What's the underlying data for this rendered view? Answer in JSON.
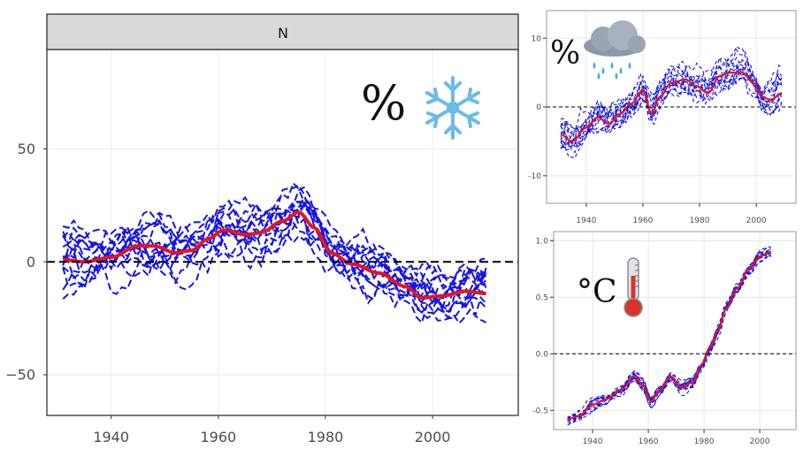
{
  "chart_data": [
    {
      "type": "line",
      "strip_label": "N",
      "unit_symbol": "%",
      "icon": "snowflake-icon",
      "x_ticks": [
        1940,
        1960,
        1980,
        2000
      ],
      "x_tick_labels": [
        "1940",
        "1960",
        "1980",
        "2000"
      ],
      "y_ticks": [
        -50,
        0,
        50
      ],
      "y_tick_labels": [
        "−50",
        "0",
        "50"
      ],
      "xlim": [
        1928,
        2016
      ],
      "ylim": [
        -68,
        94
      ],
      "reference_line": 0,
      "mean_series": {
        "x": [
          1931,
          1935,
          1940,
          1945,
          1948,
          1952,
          1955,
          1958,
          1961,
          1965,
          1968,
          1972,
          1975,
          1978,
          1981,
          1985,
          1990,
          1995,
          1998,
          2002,
          2006,
          2010
        ],
        "y": [
          1,
          0,
          2,
          7,
          7,
          4,
          5,
          10,
          14,
          12,
          13,
          18,
          22,
          15,
          4,
          -1,
          -5,
          -11,
          -16,
          -15,
          -13,
          -14
        ]
      },
      "ensemble": {
        "members": 14,
        "x_start": 1931,
        "x_end": 2010,
        "spread": 13
      },
      "colors": {
        "mean": "#e8141c",
        "ensemble": "#1414e6",
        "reference": "#000000",
        "strip": "#d9d9d9"
      }
    },
    {
      "type": "line",
      "unit_symbol": "%",
      "icon": "rain-cloud-icon",
      "x_ticks": [
        1940,
        1960,
        1980,
        2000
      ],
      "x_tick_labels": [
        "1940",
        "1960",
        "1980",
        "2000"
      ],
      "y_ticks": [
        -10,
        0,
        10
      ],
      "y_tick_labels": [
        "-10",
        "0",
        "10"
      ],
      "xlim": [
        1926,
        2014
      ],
      "ylim": [
        -14,
        14
      ],
      "reference_line": 0,
      "mean_series": {
        "x": [
          1931,
          1935,
          1940,
          1944,
          1948,
          1952,
          1956,
          1960,
          1963,
          1966,
          1970,
          1975,
          1979,
          1983,
          1987,
          1991,
          1995,
          1999,
          2002,
          2005,
          2009
        ],
        "y": [
          -4,
          -5,
          -3,
          -1.5,
          -2.5,
          -1,
          0.5,
          2.5,
          -1,
          1.5,
          3.5,
          4,
          3,
          2,
          4.5,
          5,
          5,
          3.5,
          1.5,
          1,
          2
        ]
      },
      "ensemble": {
        "members": 14,
        "x_start": 1931,
        "x_end": 2009,
        "spread": 2.8
      },
      "colors": {
        "mean": "#e8141c",
        "ensemble": "#1414e6",
        "reference": "#000000"
      }
    },
    {
      "type": "line",
      "unit_symbol": "°C",
      "icon": "thermometer-icon",
      "x_ticks": [
        1940,
        1960,
        1980,
        2000
      ],
      "x_tick_labels": [
        "1940",
        "1960",
        "1980",
        "2000"
      ],
      "y_ticks": [
        -0.5,
        0.0,
        0.5,
        1.0
      ],
      "y_tick_labels": [
        "-0.5",
        "0.0",
        "0.5",
        "1.0"
      ],
      "xlim": [
        1926,
        2013
      ],
      "ylim": [
        -0.67,
        1.08
      ],
      "reference_line": 0,
      "mean_series": {
        "x": [
          1931,
          1935,
          1940,
          1945,
          1950,
          1955,
          1958,
          1961,
          1964,
          1968,
          1972,
          1976,
          1979,
          1982,
          1985,
          1988,
          1992,
          1996,
          2000,
          2004
        ],
        "y": [
          -0.58,
          -0.55,
          -0.45,
          -0.4,
          -0.32,
          -0.2,
          -0.28,
          -0.42,
          -0.32,
          -0.2,
          -0.3,
          -0.25,
          -0.1,
          0.05,
          0.2,
          0.4,
          0.58,
          0.75,
          0.86,
          0.9
        ]
      },
      "ensemble": {
        "members": 14,
        "x_start": 1931,
        "x_end": 2004,
        "spread": 0.05
      },
      "colors": {
        "mean": "#e8141c",
        "ensemble": "#1414e6",
        "reference": "#000000"
      }
    }
  ]
}
